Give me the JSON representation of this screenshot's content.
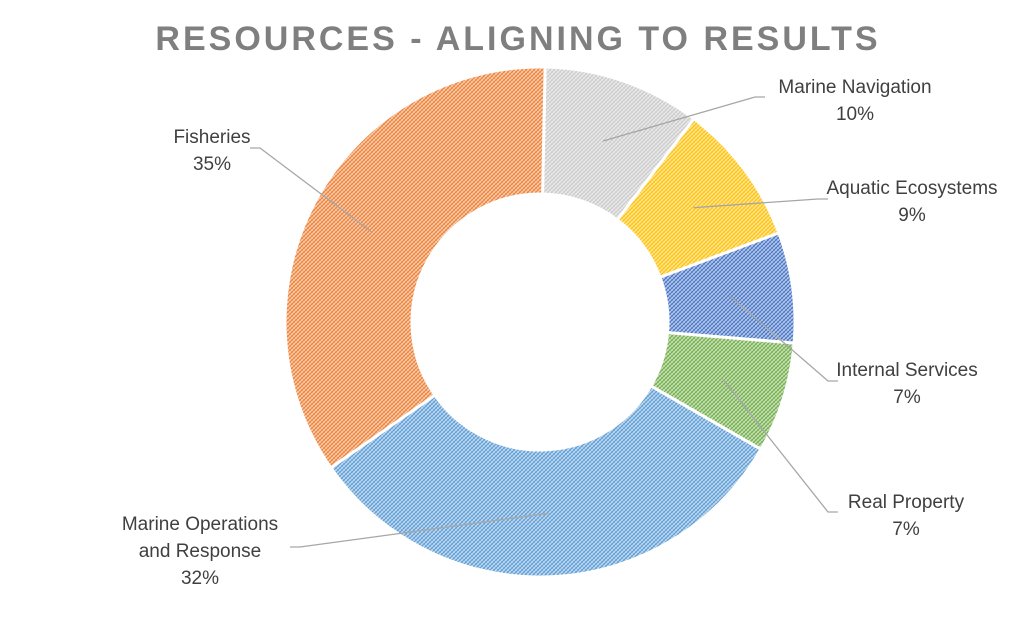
{
  "chart_data": {
    "type": "pie",
    "variant": "doughnut",
    "title": "RESOURCES - ALIGNING TO RESULTS",
    "slices": [
      {
        "name": "Marine Navigation",
        "percent_label": "10%",
        "value": 10,
        "color": "#c9c9c9"
      },
      {
        "name": "Aquatic Ecosystems",
        "percent_label": "9%",
        "value": 9,
        "color": "#ffc000"
      },
      {
        "name": "Internal Services",
        "percent_label": "7%",
        "value": 7,
        "color": "#4472c4"
      },
      {
        "name": "Real Property",
        "percent_label": "7%",
        "value": 7,
        "color": "#70ad47"
      },
      {
        "name": "Marine Operations and Response",
        "percent_label": "32%",
        "value": 32,
        "color": "#5b9bd5"
      },
      {
        "name": "Fisheries",
        "percent_label": "35%",
        "value": 35,
        "color": "#ed7d31"
      }
    ],
    "legend": "none"
  }
}
